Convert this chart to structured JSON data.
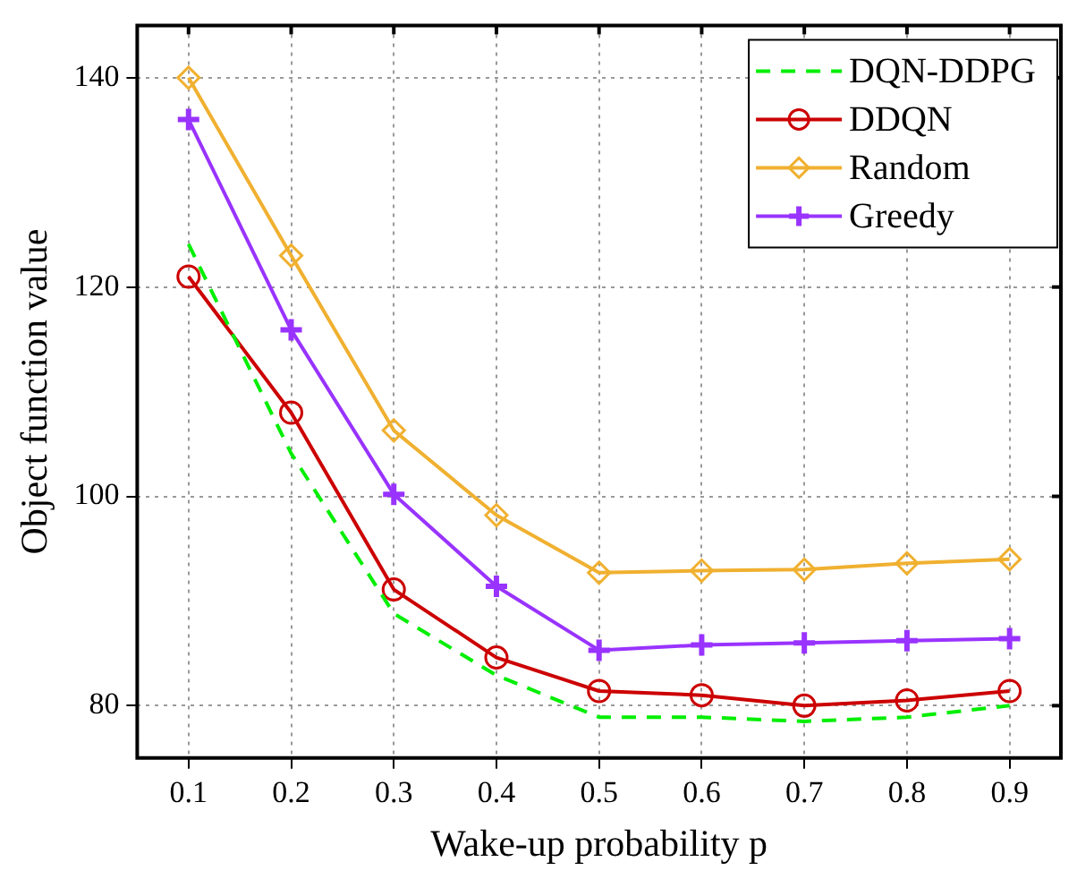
{
  "chart_data": {
    "type": "line",
    "xlabel": "Wake-up probability p",
    "ylabel": "Object function value",
    "categories": [
      "0.1",
      "0.2",
      "0.3",
      "0.4",
      "0.5",
      "0.6",
      "0.7",
      "0.8",
      "0.9"
    ],
    "ylim": [
      75,
      145
    ],
    "yticks": [
      80,
      100,
      120,
      140
    ],
    "grid": true,
    "legend": "top right",
    "series": [
      {
        "name": "DQN-DDPG",
        "color": "#00ee00",
        "marker": "none",
        "line_style": "dashed",
        "values": [
          124.1,
          104.1,
          88.8,
          82.9,
          78.9,
          78.9,
          78.5,
          78.9,
          80
        ]
      },
      {
        "name": "DDQN",
        "color": "#cc0000",
        "marker": "circle",
        "line_style": "solid",
        "values": [
          121,
          108,
          91.1,
          84.6,
          81.4,
          81,
          80,
          80.5,
          81.4
        ]
      },
      {
        "name": "Random",
        "color": "#f0b030",
        "marker": "diamond",
        "line_style": "solid",
        "values": [
          140,
          123,
          106.3,
          98.2,
          92.7,
          92.9,
          93,
          93.6,
          94
        ]
      },
      {
        "name": "Greedy",
        "color": "#9933ff",
        "marker": "cross",
        "line_style": "solid",
        "values": [
          136,
          115.9,
          100.2,
          91.4,
          85.3,
          85.8,
          86,
          86.2,
          86.4
        ]
      }
    ]
  }
}
